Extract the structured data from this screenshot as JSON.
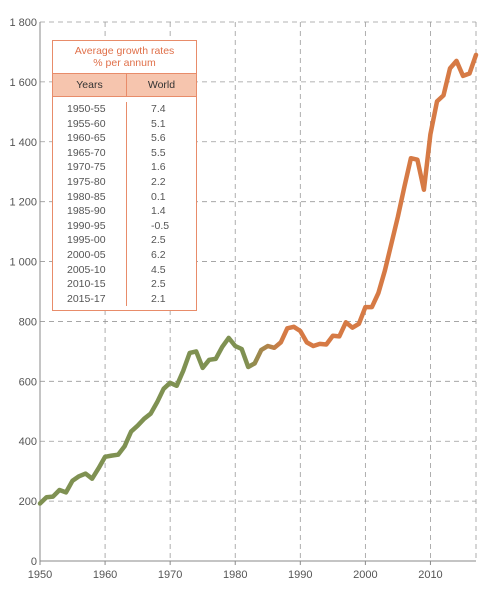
{
  "chart_data": {
    "type": "line",
    "title": "",
    "xlabel": "",
    "ylabel": "",
    "xlim": [
      1950,
      2017
    ],
    "ylim": [
      0,
      1800
    ],
    "x_ticks": [
      "1950",
      "1960",
      "1970",
      "1980",
      "1990",
      "2000",
      "2010"
    ],
    "y_ticks": [
      "0",
      "200",
      "400",
      "600",
      "800",
      "1 000",
      "1 200",
      "1 400",
      "1 600",
      "1 800"
    ],
    "grid": true,
    "colors": {
      "start": "#7f9152",
      "end": "#d67a45"
    },
    "series": [
      {
        "x": [
          1950,
          1951,
          1952,
          1953,
          1954,
          1955,
          1956,
          1957,
          1958,
          1959,
          1960,
          1961,
          1962,
          1963,
          1964,
          1965,
          1966,
          1967,
          1968,
          1969,
          1970,
          1971,
          1972,
          1973,
          1974,
          1975,
          1976,
          1977,
          1978,
          1979,
          1980,
          1981,
          1982,
          1983,
          1984,
          1985,
          1986,
          1987,
          1988,
          1989,
          1990,
          1991,
          1992,
          1993,
          1994,
          1995,
          1996,
          1997,
          1998,
          1999,
          2000,
          2001,
          2002,
          2003,
          2004,
          2005,
          2006,
          2007,
          2008,
          2009,
          2010,
          2011,
          2012,
          2013,
          2014,
          2015,
          2016,
          2017
        ],
        "values": [
          192,
          213,
          215,
          237,
          229,
          268,
          283,
          292,
          275,
          310,
          348,
          352,
          355,
          383,
          432,
          452,
          475,
          492,
          530,
          575,
          595,
          585,
          635,
          695,
          700,
          645,
          672,
          675,
          715,
          745,
          718,
          708,
          648,
          660,
          705,
          718,
          712,
          730,
          777,
          782,
          768,
          730,
          718,
          725,
          723,
          752,
          750,
          797,
          779,
          792,
          848,
          848,
          895,
          970,
          1060,
          1150,
          1250,
          1345,
          1340,
          1240,
          1425,
          1535,
          1555,
          1645,
          1670,
          1620,
          1628,
          1690
        ]
      }
    ],
    "inset_table": {
      "title_line1": "Average growth rates",
      "title_line2": "% per annum",
      "header_years": "Years",
      "header_world": "World",
      "rows": [
        {
          "years": "1950-55",
          "world": "7.4"
        },
        {
          "years": "1955-60",
          "world": "5.1"
        },
        {
          "years": "1960-65",
          "world": "5.6"
        },
        {
          "years": "1965-70",
          "world": "5.5"
        },
        {
          "years": "1970-75",
          "world": "1.6"
        },
        {
          "years": "1975-80",
          "world": "2.2"
        },
        {
          "years": "1980-85",
          "world": "0.1"
        },
        {
          "years": "1985-90",
          "world": "1.4"
        },
        {
          "years": "1990-95",
          "world": "-0.5"
        },
        {
          "years": "1995-00",
          "world": "2.5"
        },
        {
          "years": "2000-05",
          "world": "6.2"
        },
        {
          "years": "2005-10",
          "world": "4.5"
        },
        {
          "years": "2010-15",
          "world": "2.5"
        },
        {
          "years": "2015-17",
          "world": "2.1"
        }
      ]
    }
  }
}
